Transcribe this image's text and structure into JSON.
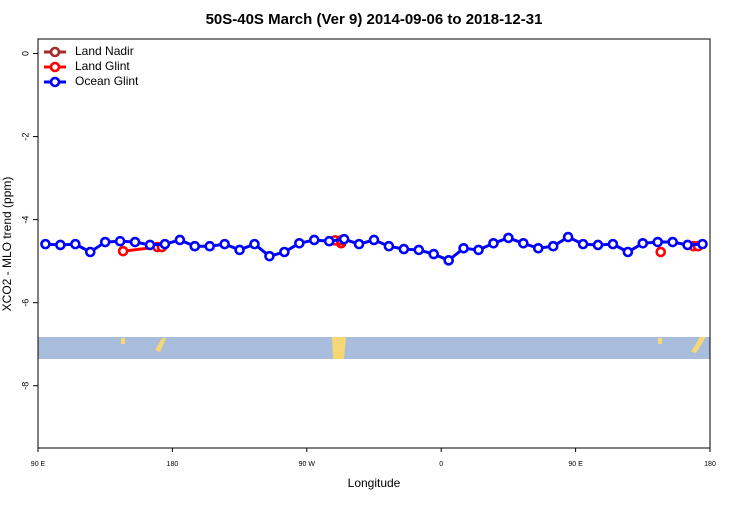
{
  "chart_data": {
    "type": "line",
    "title": "50S-40S March (Ver 9)   2014-09-06 to 2018-12-31",
    "x_label": "Longitude",
    "y_label": "XCO2 - MLO trend (ppm)",
    "xlim": [
      90,
      540
    ],
    "xticks": [
      {
        "value": 90,
        "label": "90 E"
      },
      {
        "value": 180,
        "label": "180"
      },
      {
        "value": 270,
        "label": "90 W"
      },
      {
        "value": 360,
        "label": "0"
      },
      {
        "value": 450,
        "label": "90 E"
      },
      {
        "value": 540,
        "label": "180"
      }
    ],
    "ylim": [
      -9.5,
      0.35
    ],
    "yticks": [
      0,
      -2,
      -4,
      -6,
      -8
    ],
    "legend": "top-left",
    "series": [
      {
        "name": "Land Nadir",
        "color": "#a52a2a",
        "x": [],
        "values": []
      },
      {
        "name": "Land Glint",
        "color": "#ff0000",
        "x": [
          147,
          170,
          173,
          null,
          289,
          293,
          293,
          null,
          507,
          null,
          529,
          532
        ],
        "values": [
          -4.76,
          -4.66,
          -4.66,
          null,
          -4.5,
          -4.57,
          -4.5,
          null,
          -4.78,
          null,
          -4.64,
          -4.64
        ]
      },
      {
        "name": "Ocean Glint",
        "color": "#0000ff",
        "x": [
          95,
          105,
          115,
          125,
          135,
          145,
          155,
          165,
          175,
          185,
          195,
          205,
          215,
          225,
          235,
          245,
          255,
          265,
          275,
          285,
          295,
          305,
          315,
          325,
          335,
          345,
          355,
          365,
          375,
          385,
          395,
          405,
          415,
          425,
          435,
          445,
          455,
          465,
          475,
          485,
          495,
          505,
          515,
          525,
          535
        ],
        "values": [
          -4.59,
          -4.61,
          -4.59,
          -4.78,
          -4.54,
          -4.52,
          -4.54,
          -4.61,
          -4.59,
          -4.49,
          -4.64,
          -4.64,
          -4.59,
          -4.73,
          -4.59,
          -4.88,
          -4.78,
          -4.57,
          -4.49,
          -4.52,
          -4.47,
          -4.59,
          -4.49,
          -4.64,
          -4.71,
          -4.73,
          -4.83,
          -4.98,
          -4.69,
          -4.73,
          -4.57,
          -4.44,
          -4.57,
          -4.69,
          -4.64,
          -4.42,
          -4.59,
          -4.61,
          -4.59,
          -4.78,
          -4.57,
          -4.54,
          -4.54,
          -4.61,
          -4.59
        ]
      }
    ]
  }
}
